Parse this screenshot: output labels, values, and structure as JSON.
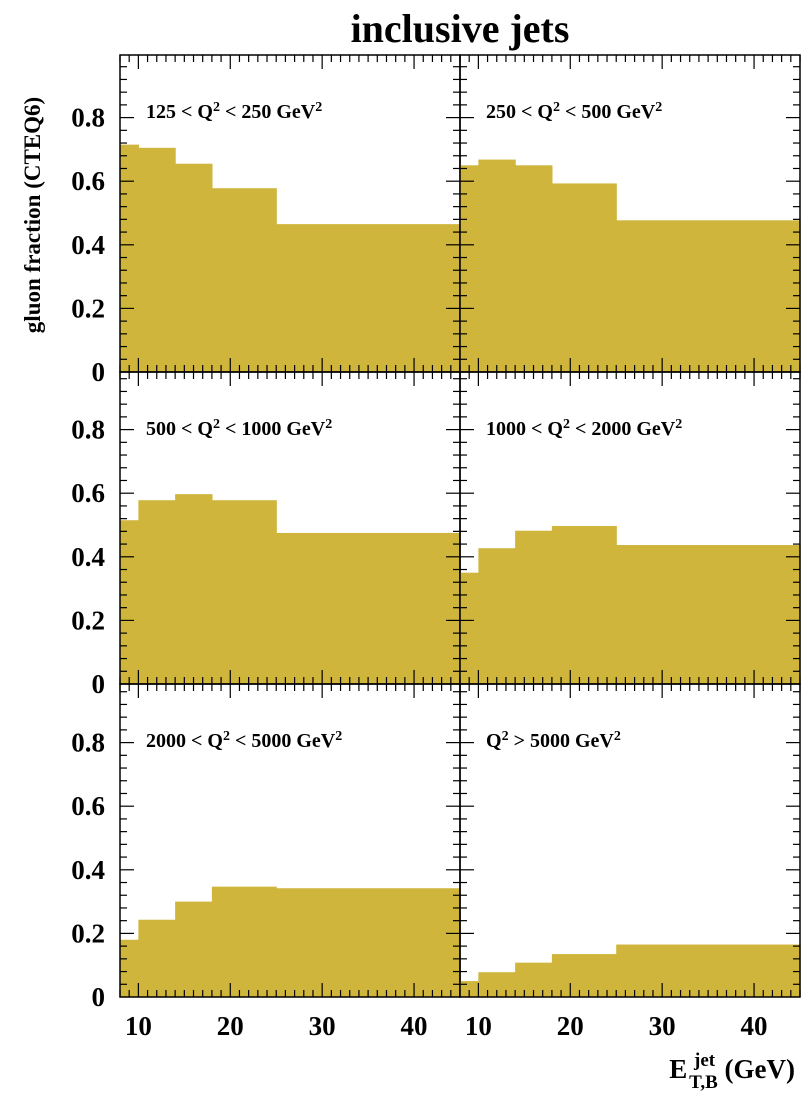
{
  "chart_data": {
    "type": "bar",
    "title": "inclusive jets",
    "ylabel": "gluon fraction (CTEQ6)",
    "xlabel": {
      "main": "E",
      "sup": "jet",
      "sub": "T,B",
      "unit": " (GeV)"
    },
    "xlim": [
      8,
      45
    ],
    "ylim": [
      0,
      1
    ],
    "xticks": [
      10,
      20,
      30,
      40
    ],
    "yticks": [
      0,
      0.2,
      0.4,
      0.6,
      0.8
    ],
    "ytick_labels": [
      "0",
      "0.2",
      "0.4",
      "0.6",
      "0.8"
    ],
    "fill_color": "#cfb53b",
    "bin_edges": [
      8,
      10,
      14,
      18,
      25,
      45
    ],
    "panels": [
      {
        "label": {
          "pre": "125 < Q",
          "sup": "2",
          "mid": " < 250 GeV",
          "sup2": "2"
        },
        "values": [
          0.715,
          0.705,
          0.655,
          0.578,
          0.465
        ]
      },
      {
        "label": {
          "pre": "250 < Q",
          "sup": "2",
          "mid": " < 500 GeV",
          "sup2": "2"
        },
        "values": [
          0.65,
          0.668,
          0.65,
          0.593,
          0.477
        ]
      },
      {
        "label": {
          "pre": "500 < Q",
          "sup": "2",
          "mid": " < 1000 GeV",
          "sup2": "2"
        },
        "values": [
          0.515,
          0.578,
          0.597,
          0.578,
          0.475
        ]
      },
      {
        "label": {
          "pre": "1000 < Q",
          "sup": "2",
          "mid": " < 2000 GeV",
          "sup2": "2"
        },
        "values": [
          0.35,
          0.427,
          0.482,
          0.497,
          0.437
        ]
      },
      {
        "label": {
          "pre": "2000 < Q",
          "sup": "2",
          "mid": " < 5000 GeV",
          "sup2": "2"
        },
        "values": [
          0.18,
          0.243,
          0.3,
          0.347,
          0.342
        ]
      },
      {
        "label": {
          "pre": "Q",
          "sup": "2",
          "mid": " > 5000 GeV",
          "sup2": "2"
        },
        "values": [
          0.05,
          0.078,
          0.108,
          0.135,
          0.165
        ]
      }
    ]
  }
}
